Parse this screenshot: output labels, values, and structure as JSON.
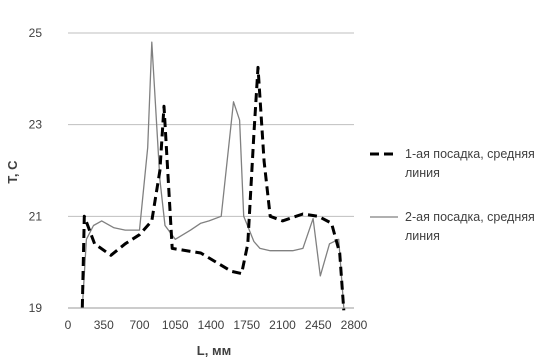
{
  "chart_data": {
    "type": "line",
    "title": "",
    "xlabel": "L, мм",
    "ylabel": "T, C",
    "xlim": [
      0,
      2800
    ],
    "ylim": [
      19,
      25
    ],
    "xticks": [
      0,
      350,
      700,
      1050,
      1400,
      1750,
      2100,
      2450,
      2800
    ],
    "yticks": [
      19,
      21,
      23,
      25
    ],
    "ytick_labels": [
      "19",
      "21",
      "23",
      "25"
    ],
    "grid": "horizontal",
    "legend_position": "right",
    "series": [
      {
        "name": "1-ая посадка, средняя линия",
        "style": "dashed",
        "color": "#000000",
        "x": [
          140,
          160,
          260,
          420,
          560,
          700,
          820,
          900,
          940,
          1020,
          1300,
          1450,
          1600,
          1700,
          1760,
          1820,
          1860,
          1920,
          1980,
          2100,
          2300,
          2450,
          2580,
          2660,
          2700
        ],
        "y": [
          19.0,
          21.0,
          20.4,
          20.15,
          20.4,
          20.6,
          20.9,
          22.0,
          23.4,
          20.3,
          20.2,
          20.0,
          19.8,
          19.75,
          20.4,
          22.8,
          24.25,
          22.2,
          21.0,
          20.9,
          21.05,
          21.0,
          20.85,
          20.2,
          18.95
        ]
      },
      {
        "name": "2-ая посадка, средняя линия",
        "style": "solid",
        "color": "#808080",
        "x": [
          140,
          180,
          250,
          330,
          450,
          560,
          700,
          780,
          820,
          900,
          950,
          1050,
          1200,
          1300,
          1380,
          1500,
          1620,
          1680,
          1720,
          1820,
          1880,
          1980,
          2100,
          2200,
          2300,
          2400,
          2470,
          2560,
          2650,
          2700
        ],
        "y": [
          19.0,
          20.5,
          20.8,
          20.9,
          20.75,
          20.7,
          20.7,
          22.5,
          24.8,
          21.8,
          20.8,
          20.5,
          20.7,
          20.85,
          20.9,
          21.0,
          23.5,
          23.1,
          21.0,
          20.45,
          20.3,
          20.25,
          20.25,
          20.25,
          20.3,
          20.95,
          19.7,
          20.4,
          20.5,
          19.0
        ]
      }
    ]
  }
}
